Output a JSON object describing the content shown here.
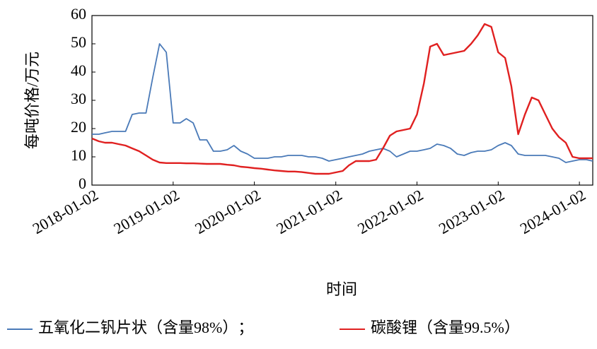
{
  "chart_data": {
    "type": "line",
    "y_label": "每吨价格/万元",
    "x_label": "时间",
    "legend_separator": "；",
    "x": [
      "2018-01-02",
      "2018-02-02",
      "2018-03-02",
      "2018-04-02",
      "2018-05-02",
      "2018-06-02",
      "2018-07-02",
      "2018-08-02",
      "2018-09-02",
      "2018-10-02",
      "2018-11-02",
      "2018-12-02",
      "2019-01-02",
      "2019-02-02",
      "2019-03-02",
      "2019-04-02",
      "2019-05-02",
      "2019-06-02",
      "2019-07-02",
      "2019-08-02",
      "2019-09-02",
      "2019-10-02",
      "2019-11-02",
      "2019-12-02",
      "2020-01-02",
      "2020-02-02",
      "2020-03-02",
      "2020-04-02",
      "2020-05-02",
      "2020-06-02",
      "2020-07-02",
      "2020-08-02",
      "2020-09-02",
      "2020-10-02",
      "2020-11-02",
      "2020-12-02",
      "2021-01-02",
      "2021-02-02",
      "2021-03-02",
      "2021-04-02",
      "2021-05-02",
      "2021-06-02",
      "2021-07-02",
      "2021-08-02",
      "2021-09-02",
      "2021-10-02",
      "2021-11-02",
      "2021-12-02",
      "2022-01-02",
      "2022-02-02",
      "2022-03-02",
      "2022-04-02",
      "2022-05-02",
      "2022-06-02",
      "2022-07-02",
      "2022-08-02",
      "2022-09-02",
      "2022-10-02",
      "2022-11-02",
      "2022-12-02",
      "2023-01-02",
      "2023-02-02",
      "2023-03-02",
      "2023-04-02",
      "2023-05-02",
      "2023-06-02",
      "2023-07-02",
      "2023-08-02",
      "2023-09-02",
      "2023-10-02",
      "2023-11-02",
      "2023-12-02",
      "2024-01-02",
      "2024-02-02",
      "2024-03-02"
    ],
    "series": [
      {
        "name": "五氧化二钒片状（含量98%）",
        "color": "#4a7ab8",
        "values": [
          18,
          18,
          18.5,
          19,
          19,
          19,
          25,
          25.5,
          25.5,
          38,
          50,
          47,
          22,
          22,
          23.5,
          22,
          16,
          16,
          12,
          12,
          12.5,
          14,
          12,
          11,
          9.5,
          9.5,
          9.5,
          10,
          10,
          10.5,
          10.5,
          10.5,
          10,
          10,
          9.5,
          8.5,
          9,
          9.5,
          10,
          10.5,
          11,
          12,
          12.5,
          13,
          12,
          10,
          11,
          12,
          12,
          12.5,
          13,
          14.5,
          14,
          13,
          11,
          10.5,
          11.5,
          12,
          12,
          12.5,
          14,
          15,
          14,
          11,
          10.5,
          10.5,
          10.5,
          10.5,
          10,
          9.5,
          8,
          8.5,
          9,
          9,
          8.5
        ]
      },
      {
        "name": "碳酸锂（含量99.5%）",
        "color": "#e02020",
        "values": [
          16.5,
          15.5,
          15,
          15,
          14.5,
          14,
          13,
          12,
          10.5,
          9,
          8,
          7.8,
          7.8,
          7.8,
          7.7,
          7.7,
          7.6,
          7.5,
          7.5,
          7.5,
          7.2,
          7,
          6.5,
          6.3,
          6,
          5.8,
          5.5,
          5.2,
          5,
          4.8,
          4.8,
          4.6,
          4.3,
          4,
          4,
          4,
          4.5,
          5,
          7,
          8.5,
          8.5,
          8.5,
          9,
          13,
          17.5,
          19,
          19.5,
          20,
          25,
          36,
          49,
          50,
          46,
          46.5,
          47,
          47.5,
          50,
          53,
          57,
          56,
          47,
          45,
          35,
          18,
          25,
          31,
          30,
          25,
          20,
          17,
          15,
          10,
          9.5,
          9.5,
          9.5
        ]
      }
    ],
    "xlim": [
      "2018-01-02",
      "2024-03-02"
    ],
    "xticks": [
      "2018-01-02",
      "2019-01-02",
      "2020-01-02",
      "2021-01-02",
      "2022-01-02",
      "2023-01-02",
      "2024-01-02"
    ],
    "ylim": [
      0,
      60
    ],
    "yticks": [
      0,
      10,
      20,
      30,
      40,
      50,
      60
    ]
  }
}
